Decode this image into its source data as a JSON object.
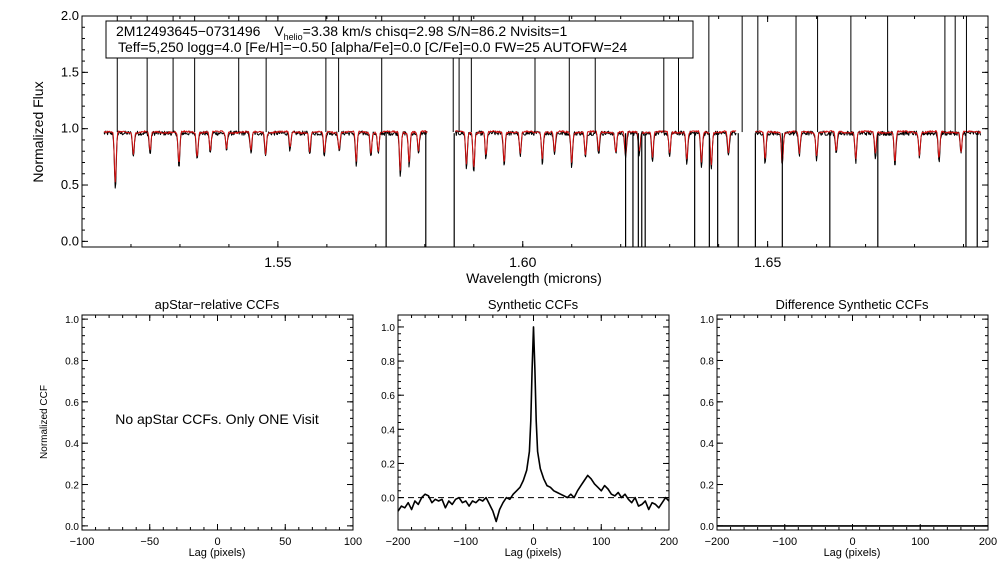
{
  "chart_data": [
    {
      "type": "line",
      "id": "spectrum",
      "xlabel": "Wavelength (microns)",
      "ylabel": "Normalized Flux",
      "xlim": [
        1.51,
        1.695
      ],
      "ylim": [
        -0.05,
        2.0
      ],
      "xticks": [
        1.55,
        1.6,
        1.65
      ],
      "xtick_labels": [
        "1.55",
        "1.60",
        "1.65"
      ],
      "yticks": [
        0.0,
        0.5,
        1.0,
        1.5,
        2.0
      ],
      "ytick_labels": [
        "0.0",
        "0.5",
        "1.0",
        "1.5",
        "2.0"
      ],
      "legend_box": {
        "star_id": "2M12493645−0731496",
        "v_label": "V",
        "v_sub": "helio",
        "line1_rest": "=3.38 km/s  chisq=2.98  S/N=86.2  Nvisits=1",
        "line2": "Teff=5,250 logg=4.0 [Fe/H]=−0.50 [alpha/Fe]=0.0 [C/Fe]=0.0 FW=25 AUTOFW=24"
      },
      "chips": [
        [
          1.5145,
          1.5805
        ],
        [
          1.5862,
          1.6436
        ],
        [
          1.6475,
          1.6935
        ]
      ],
      "observed_color": "#000000",
      "model_color": "#d01010",
      "series": [
        {
          "name": "observed",
          "color": "#000000",
          "continuum": 0.96,
          "noise": 0.02
        },
        {
          "name": "model",
          "color": "#d01010",
          "continuum": 0.97,
          "noise": 0.008
        }
      ],
      "absorption_lines": [
        [
          1.5168,
          0.52
        ],
        [
          1.5205,
          0.8
        ],
        [
          1.5239,
          0.82
        ],
        [
          1.5298,
          0.7
        ],
        [
          1.5335,
          0.78
        ],
        [
          1.5362,
          0.83
        ],
        [
          1.5395,
          0.85
        ],
        [
          1.5445,
          0.82
        ],
        [
          1.5475,
          0.8
        ],
        [
          1.5525,
          0.85
        ],
        [
          1.5565,
          0.82
        ],
        [
          1.5595,
          0.8
        ],
        [
          1.5625,
          0.84
        ],
        [
          1.566,
          0.72
        ],
        [
          1.569,
          0.8
        ],
        [
          1.5705,
          0.82
        ],
        [
          1.575,
          0.65
        ],
        [
          1.5768,
          0.72
        ],
        [
          1.5787,
          0.82
        ],
        [
          1.5885,
          0.7
        ],
        [
          1.59,
          0.68
        ],
        [
          1.5925,
          0.78
        ],
        [
          1.5962,
          0.72
        ],
        [
          1.5995,
          0.8
        ],
        [
          1.604,
          0.75
        ],
        [
          1.6065,
          0.82
        ],
        [
          1.61,
          0.72
        ],
        [
          1.6128,
          0.78
        ],
        [
          1.6155,
          0.82
        ],
        [
          1.619,
          0.82
        ],
        [
          1.621,
          0.78
        ],
        [
          1.6238,
          0.82
        ],
        [
          1.6265,
          0.76
        ],
        [
          1.63,
          0.8
        ],
        [
          1.6335,
          0.74
        ],
        [
          1.6365,
          0.72
        ],
        [
          1.6385,
          0.7
        ],
        [
          1.642,
          0.8
        ],
        [
          1.6495,
          0.74
        ],
        [
          1.653,
          0.72
        ],
        [
          1.6565,
          0.8
        ],
        [
          1.66,
          0.78
        ],
        [
          1.664,
          0.82
        ],
        [
          1.668,
          0.76
        ],
        [
          1.672,
          0.8
        ],
        [
          1.676,
          0.72
        ],
        [
          1.681,
          0.78
        ],
        [
          1.685,
          0.75
        ],
        [
          1.6895,
          0.82
        ]
      ],
      "bad_pixel_spikes_up": [
        1.5172,
        1.5233,
        1.5286,
        1.533,
        1.542,
        1.5476,
        1.5598,
        1.5624,
        1.5712,
        1.5858,
        1.587,
        1.5895,
        1.6025,
        1.6095,
        1.6148,
        1.6288,
        1.6318,
        1.638,
        1.6448,
        1.648,
        1.6558,
        1.6602,
        1.667,
        1.6745,
        1.6862,
        1.6883,
        1.6906
      ],
      "bad_pixel_spikes_down": [
        1.5721,
        1.5802,
        1.586,
        1.621,
        1.6225,
        1.6236,
        1.6243,
        1.625,
        1.6351,
        1.6381,
        1.6398,
        1.644,
        1.6475,
        1.653,
        1.6627,
        1.6725,
        1.6905,
        1.6928
      ]
    },
    {
      "type": "line",
      "id": "apstar-ccf",
      "title": "apStar−relative CCFs",
      "xlabel": "Lag (pixels)",
      "ylabel": "Normalized CCF",
      "xlim": [
        -100,
        100
      ],
      "ylim": [
        -0.02,
        1.02
      ],
      "xticks": [
        -100,
        -50,
        0,
        50,
        100
      ],
      "xtick_labels": [
        "−100",
        "−50",
        "0",
        "50",
        "100"
      ],
      "yticks": [
        0.0,
        0.2,
        0.4,
        0.6,
        0.8,
        1.0
      ],
      "ytick_labels": [
        "0.0",
        "0.2",
        "0.4",
        "0.6",
        "0.8",
        "1.0"
      ],
      "message": "No apStar CCFs.  Only ONE Visit",
      "series": []
    },
    {
      "type": "line",
      "id": "synthetic-ccf",
      "title": "Synthetic CCFs",
      "xlabel": "Lag (pixels)",
      "xlim": [
        -200,
        200
      ],
      "ylim": [
        -0.19,
        1.07
      ],
      "xticks": [
        -200,
        -100,
        0,
        100,
        200
      ],
      "xtick_labels": [
        "−200",
        "−100",
        "0",
        "100",
        "200"
      ],
      "yticks": [
        0.0,
        0.2,
        0.4,
        0.6,
        0.8,
        1.0
      ],
      "ytick_labels": [
        "0.0",
        "0.2",
        "0.4",
        "0.6",
        "0.8",
        "1.0"
      ],
      "zero_line": 0.0,
      "series": [
        {
          "name": "synthetic CCF",
          "x": [
            -200,
            -195,
            -190,
            -185,
            -180,
            -175,
            -170,
            -165,
            -160,
            -155,
            -150,
            -145,
            -140,
            -135,
            -130,
            -125,
            -120,
            -115,
            -110,
            -105,
            -100,
            -95,
            -90,
            -85,
            -80,
            -75,
            -70,
            -65,
            -60,
            -55,
            -50,
            -45,
            -40,
            -35,
            -30,
            -25,
            -20,
            -15,
            -10,
            -6,
            -4,
            -2,
            0,
            2,
            4,
            6,
            10,
            15,
            20,
            25,
            30,
            35,
            40,
            45,
            50,
            55,
            60,
            65,
            70,
            75,
            80,
            85,
            90,
            95,
            100,
            105,
            110,
            115,
            120,
            125,
            130,
            135,
            140,
            145,
            150,
            155,
            160,
            165,
            170,
            175,
            180,
            185,
            190,
            195,
            200
          ],
          "y": [
            -0.08,
            -0.05,
            -0.06,
            -0.03,
            -0.07,
            -0.02,
            -0.04,
            0.0,
            0.02,
            0.01,
            -0.03,
            -0.01,
            -0.02,
            -0.01,
            -0.06,
            -0.02,
            -0.04,
            -0.01,
            0.0,
            -0.03,
            -0.02,
            -0.05,
            -0.02,
            -0.03,
            -0.01,
            -0.02,
            0.0,
            -0.04,
            -0.08,
            -0.14,
            -0.07,
            -0.03,
            0.0,
            -0.01,
            0.02,
            0.04,
            0.06,
            0.1,
            0.16,
            0.27,
            0.45,
            0.75,
            1.0,
            0.75,
            0.45,
            0.27,
            0.17,
            0.11,
            0.07,
            0.06,
            0.04,
            0.03,
            0.02,
            0.01,
            0.0,
            0.02,
            0.0,
            0.04,
            0.07,
            0.1,
            0.13,
            0.11,
            0.08,
            0.06,
            0.04,
            0.07,
            0.05,
            0.02,
            0.01,
            0.03,
            0.0,
            0.02,
            -0.01,
            -0.03,
            0.0,
            -0.05,
            -0.04,
            -0.02,
            -0.07,
            -0.03,
            -0.04,
            -0.06,
            -0.03,
            0.0,
            -0.02
          ]
        }
      ]
    },
    {
      "type": "line",
      "id": "diff-synthetic-ccf",
      "title": "Difference Synthetic CCFs",
      "xlabel": "Lag (pixels)",
      "xlim": [
        -200,
        200
      ],
      "ylim": [
        -0.02,
        1.02
      ],
      "xticks": [
        -200,
        -100,
        0,
        100,
        200
      ],
      "xtick_labels": [
        "−200",
        "−100",
        "0",
        "100",
        "200"
      ],
      "yticks": [
        0.0,
        0.2,
        0.4,
        0.6,
        0.8,
        1.0
      ],
      "ytick_labels": [
        "0.0",
        "0.2",
        "0.4",
        "0.6",
        "0.8",
        "1.0"
      ],
      "series": [
        {
          "name": "difference",
          "x": [
            -200,
            200
          ],
          "y": [
            0.0,
            0.0
          ]
        }
      ]
    }
  ]
}
